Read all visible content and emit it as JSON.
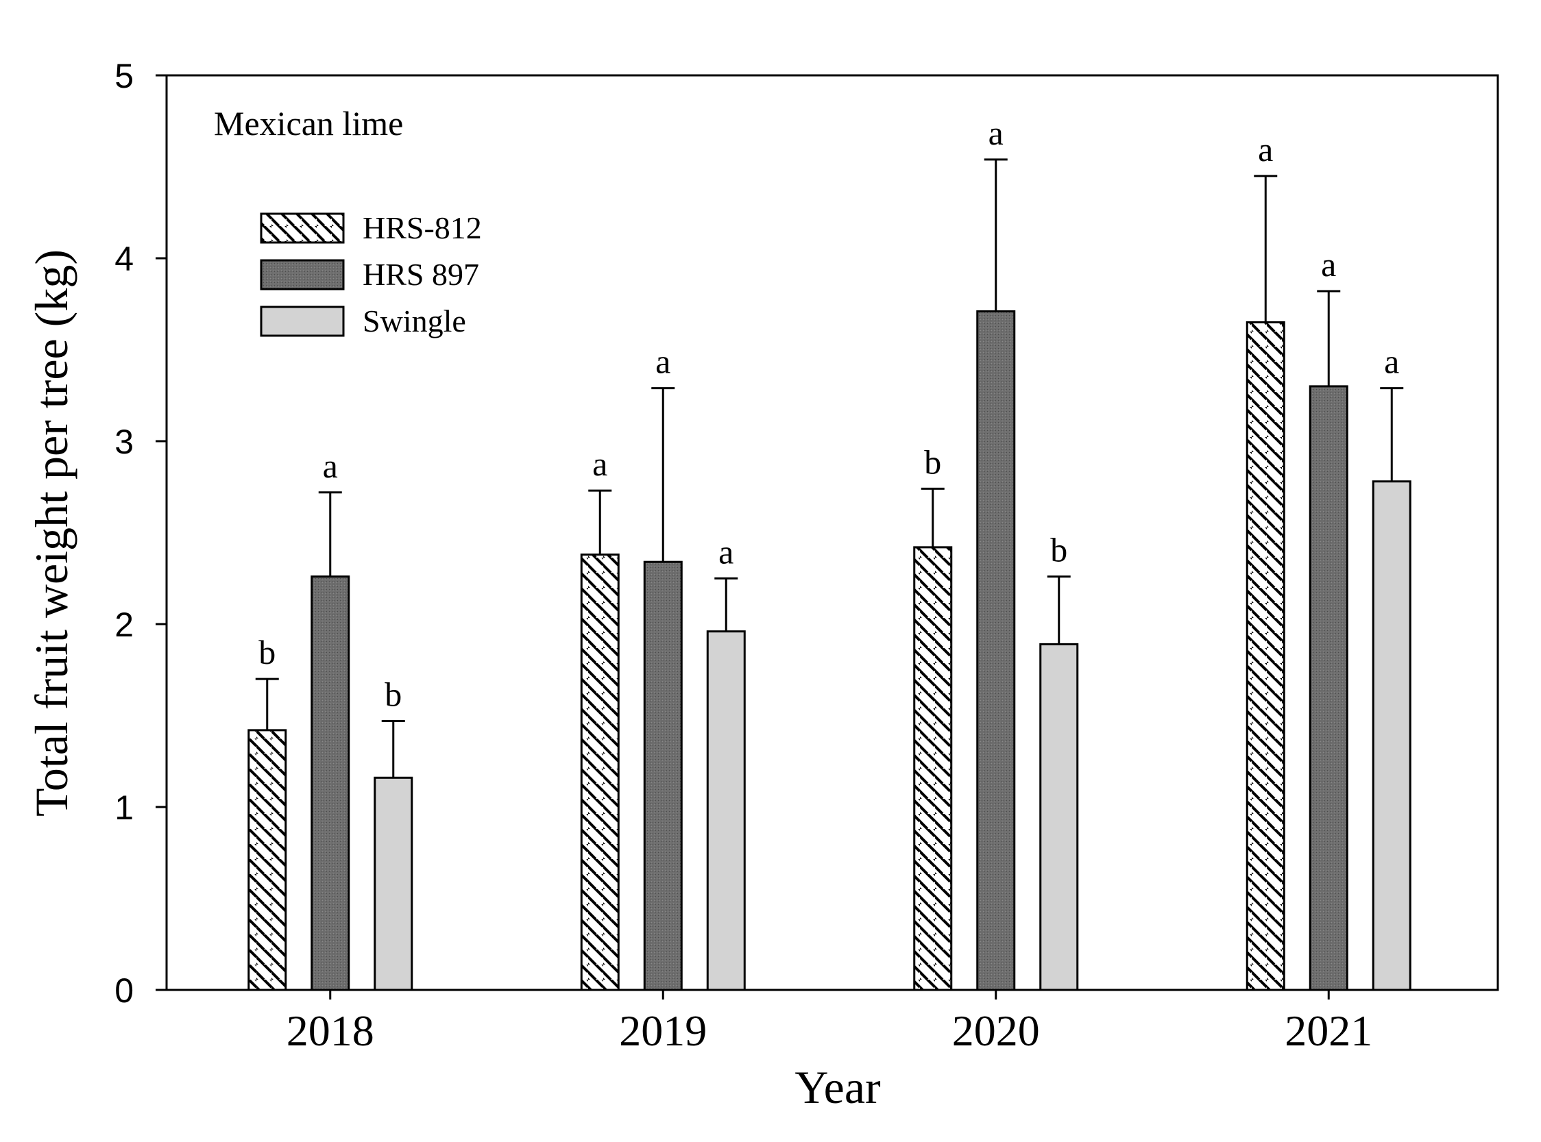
{
  "chart_data": {
    "type": "bar",
    "annotation": "Mexican lime",
    "xlabel": "Year",
    "ylabel": "Total fruit weight per tree (kg)",
    "ylim": [
      0,
      5
    ],
    "yticks": [
      0,
      1,
      2,
      3,
      4,
      5
    ],
    "categories": [
      "2018",
      "2019",
      "2020",
      "2021"
    ],
    "legend_position": "upper-left",
    "grid": false,
    "series": [
      {
        "name": "HRS-812",
        "pattern": "diagonal-hatch",
        "color": "#ffffff",
        "values": [
          1.42,
          2.38,
          2.42,
          3.65
        ],
        "errors": [
          0.28,
          0.35,
          0.32,
          0.8
        ],
        "letters": [
          "b",
          "a",
          "b",
          "a"
        ]
      },
      {
        "name": "HRS 897",
        "pattern": "dark-stipple",
        "color": "#666666",
        "values": [
          2.26,
          2.34,
          3.71,
          3.3
        ],
        "errors": [
          0.46,
          0.95,
          0.83,
          0.52
        ],
        "letters": [
          "a",
          "a",
          "a",
          "a"
        ]
      },
      {
        "name": "Swingle",
        "pattern": "solid",
        "color": "#d3d3d3",
        "values": [
          1.16,
          1.96,
          1.89,
          2.78
        ],
        "errors": [
          0.31,
          0.29,
          0.37,
          0.51
        ],
        "letters": [
          "b",
          "a",
          "b",
          "a"
        ]
      }
    ]
  }
}
